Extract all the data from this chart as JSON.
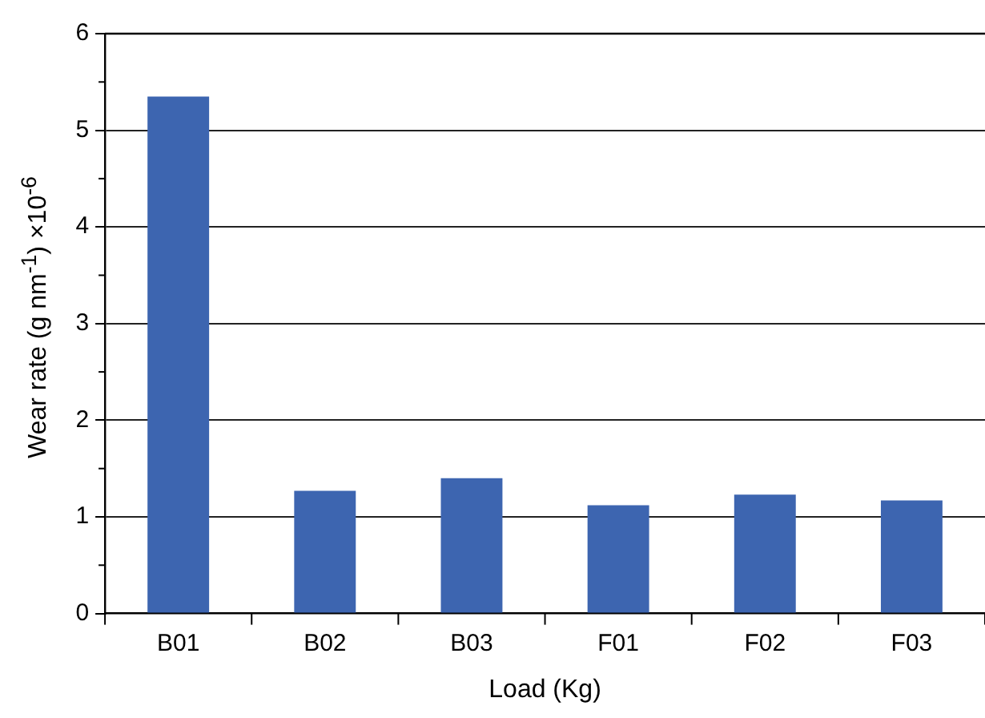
{
  "chart_data": {
    "type": "bar",
    "xlabel": "Load (Kg)",
    "ylabel": "Wear rate (g nm$^{-1}$) ×10$^{-6}$",
    "categories": [
      "B01",
      "B02",
      "B03",
      "F01",
      "F02",
      "F03"
    ],
    "values": [
      5.35,
      1.27,
      1.4,
      1.12,
      1.23,
      1.17
    ],
    "color": "#3d65b0",
    "ylim": [
      0,
      6
    ],
    "yticks": [
      0,
      1,
      2,
      3,
      4,
      5,
      6
    ],
    "grid": "y"
  }
}
